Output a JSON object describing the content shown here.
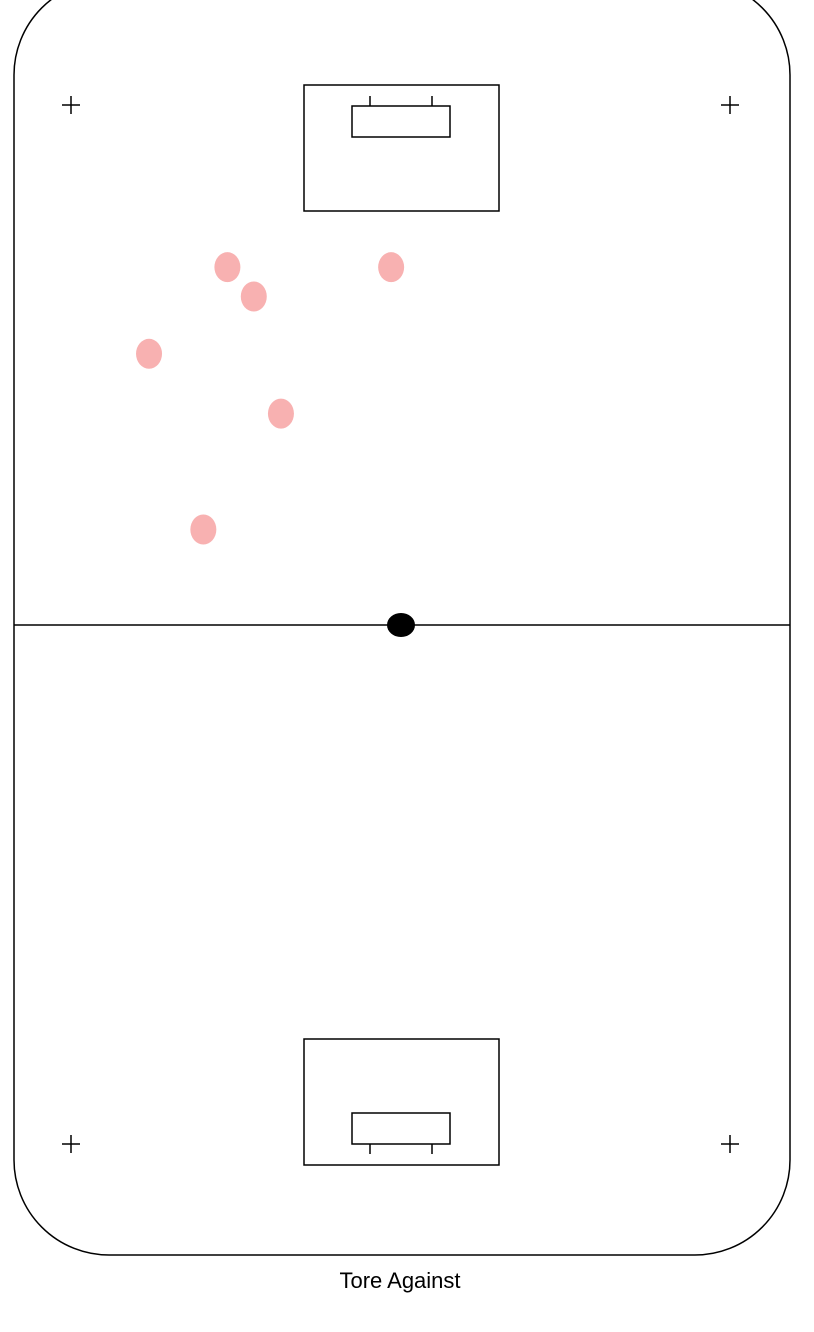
{
  "caption": "Tore Against",
  "colors": {
    "lines": "#000000",
    "shot_marker": "#f8b1b1",
    "center_dot": "#000000",
    "background": "#ffffff"
  },
  "rink": {
    "surface_x_range": [
      0,
      100
    ],
    "surface_y_range": [
      0,
      100
    ],
    "faceoff_marks": [
      {
        "name": "faceoff-mark-top-left"
      },
      {
        "name": "faceoff-mark-top-right"
      },
      {
        "name": "faceoff-mark-bottom-left"
      },
      {
        "name": "faceoff-mark-bottom-right"
      }
    ]
  },
  "goals_against": [
    {
      "x": 27.5,
      "y": 21.9
    },
    {
      "x": 30.9,
      "y": 24.3
    },
    {
      "x": 48.6,
      "y": 21.9
    },
    {
      "x": 17.4,
      "y": 29.0
    },
    {
      "x": 34.4,
      "y": 33.9
    },
    {
      "x": 24.4,
      "y": 43.4
    }
  ]
}
